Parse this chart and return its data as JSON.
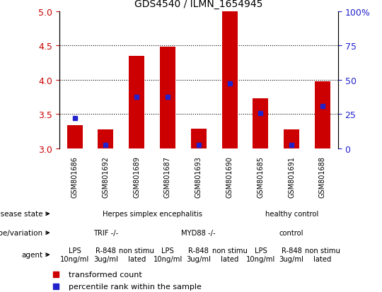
{
  "title": "GDS4540 / ILMN_1654945",
  "samples": [
    "GSM801686",
    "GSM801692",
    "GSM801689",
    "GSM801687",
    "GSM801693",
    "GSM801690",
    "GSM801685",
    "GSM801691",
    "GSM801688"
  ],
  "red_values": [
    3.34,
    3.28,
    4.35,
    4.48,
    3.29,
    5.0,
    3.73,
    3.28,
    3.98
  ],
  "blue_values": [
    3.44,
    3.05,
    3.75,
    3.75,
    3.05,
    3.95,
    3.52,
    3.05,
    3.62
  ],
  "ylim": [
    3.0,
    5.0
  ],
  "y2lim": [
    0,
    100
  ],
  "yticks": [
    3.0,
    3.5,
    4.0,
    4.5,
    5.0
  ],
  "y2ticks": [
    0,
    25,
    50,
    75,
    100
  ],
  "bar_width": 0.5,
  "bar_color": "#cc0000",
  "marker_color": "#2222cc",
  "plot_bg": "#e8e8e8",
  "disease_state_groups": [
    {
      "label": "Herpes simplex encephalitis",
      "start": 0,
      "end": 5,
      "color": "#aaddaa"
    },
    {
      "label": "healthy control",
      "start": 6,
      "end": 8,
      "color": "#66bb66"
    }
  ],
  "genotype_groups": [
    {
      "label": "TRIF -/-",
      "start": 0,
      "end": 2,
      "color": "#ccbbee"
    },
    {
      "label": "MYD88 -/-",
      "start": 3,
      "end": 5,
      "color": "#aa88dd"
    },
    {
      "label": "control",
      "start": 6,
      "end": 8,
      "color": "#aa88dd"
    }
  ],
  "agent_groups": [
    {
      "label": "LPS\n10ng/ml",
      "start": 0,
      "end": 0,
      "color": "#ffbbbb"
    },
    {
      "label": "R-848\n3ug/ml",
      "start": 1,
      "end": 1,
      "color": "#ffbbbb"
    },
    {
      "label": "non stimu\nlated",
      "start": 2,
      "end": 2,
      "color": "#ee9999"
    },
    {
      "label": "LPS\n10ng/ml",
      "start": 3,
      "end": 3,
      "color": "#ffbbbb"
    },
    {
      "label": "R-848\n3ug/ml",
      "start": 4,
      "end": 4,
      "color": "#ffbbbb"
    },
    {
      "label": "non stimu\nlated",
      "start": 5,
      "end": 5,
      "color": "#ee9999"
    },
    {
      "label": "LPS\n10ng/ml",
      "start": 6,
      "end": 6,
      "color": "#ffbbbb"
    },
    {
      "label": "R-848\n3ug/ml",
      "start": 7,
      "end": 7,
      "color": "#ffbbbb"
    },
    {
      "label": "non stimu\nlated",
      "start": 8,
      "end": 8,
      "color": "#ee9999"
    }
  ],
  "row_labels": [
    "disease state",
    "genotype/variation",
    "agent"
  ],
  "legend_items": [
    {
      "label": "transformed count",
      "color": "#cc0000"
    },
    {
      "label": "percentile rank within the sample",
      "color": "#2222cc"
    }
  ],
  "background_color": "#ffffff",
  "tick_color_left": "#cc0000",
  "tick_color_right": "#2222cc",
  "sample_label_bg": "#cccccc",
  "sample_border_color": "#888888"
}
